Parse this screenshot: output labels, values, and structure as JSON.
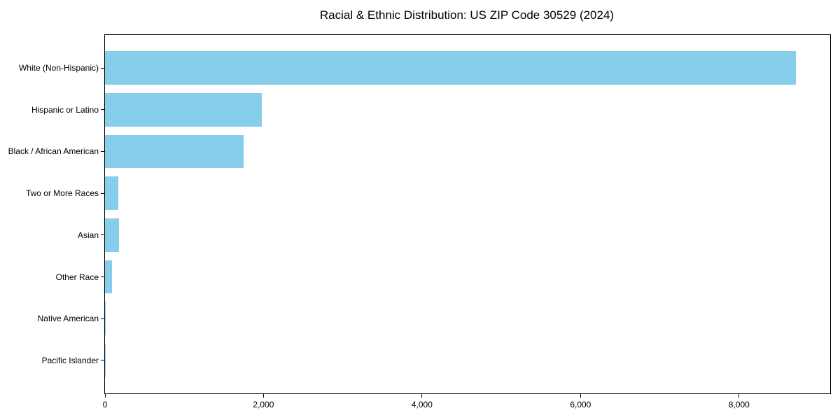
{
  "figure": {
    "background": "#ffffff",
    "text_color": "#000000",
    "spine_color": "#000000"
  },
  "chart_data": {
    "type": "bar",
    "orientation": "horizontal",
    "title": "Racial & Ethnic Distribution: US ZIP Code 30529 (2024)",
    "categories": [
      "White (Non-Hispanic)",
      "Hispanic or Latino",
      "Black / African American",
      "Two or More Races",
      "Asian",
      "Other Race",
      "Native American",
      "Pacific Islander"
    ],
    "values": [
      8715,
      1975,
      1745,
      170,
      180,
      90,
      8,
      2
    ],
    "xlabel": "",
    "ylabel": "",
    "xlim": [
      0,
      9150
    ],
    "x_ticks": {
      "values": [
        0,
        2000,
        4000,
        6000,
        8000
      ],
      "labels": [
        "0",
        "2,000",
        "4,000",
        "6,000",
        "8,000"
      ]
    },
    "bar_color": "#87CEEB",
    "grid": false,
    "legend": null
  }
}
